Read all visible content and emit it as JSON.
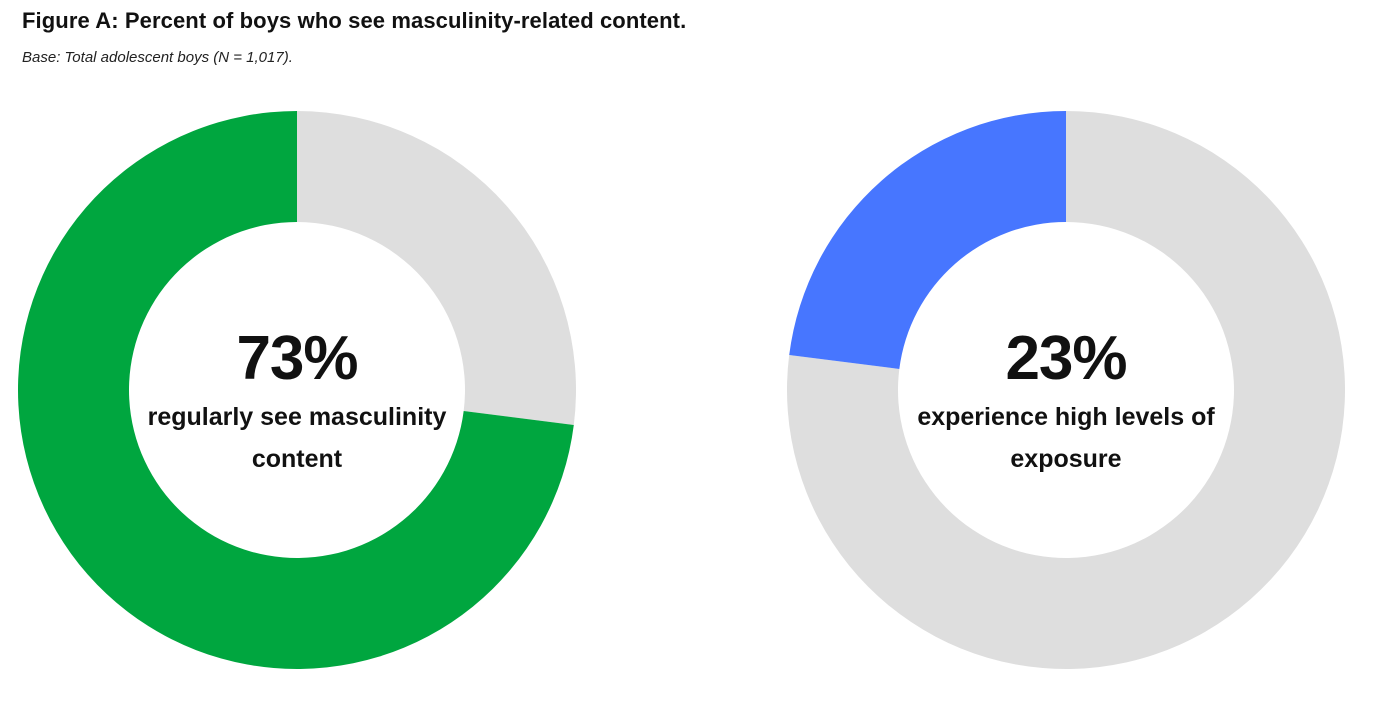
{
  "header": {
    "title": "Figure A: Percent of boys who see masculinity-related content.",
    "subtitle": "Base: Total adolescent boys (N = 1,017)."
  },
  "colors": {
    "track": "#dedede",
    "green": "#00a63f",
    "blue": "#4776ff"
  },
  "chart_data": [
    {
      "type": "pie",
      "variant": "donut",
      "value": 73,
      "max": 100,
      "value_label": "73%",
      "caption": "regularly see masculinity content",
      "color": "#00a63f",
      "track_color": "#dedede",
      "direction": "counterclockwise-from-top"
    },
    {
      "type": "pie",
      "variant": "donut",
      "value": 23,
      "max": 100,
      "value_label": "23%",
      "caption": "experience high levels of exposure",
      "color": "#4776ff",
      "track_color": "#dedede",
      "direction": "counterclockwise-from-top"
    }
  ]
}
